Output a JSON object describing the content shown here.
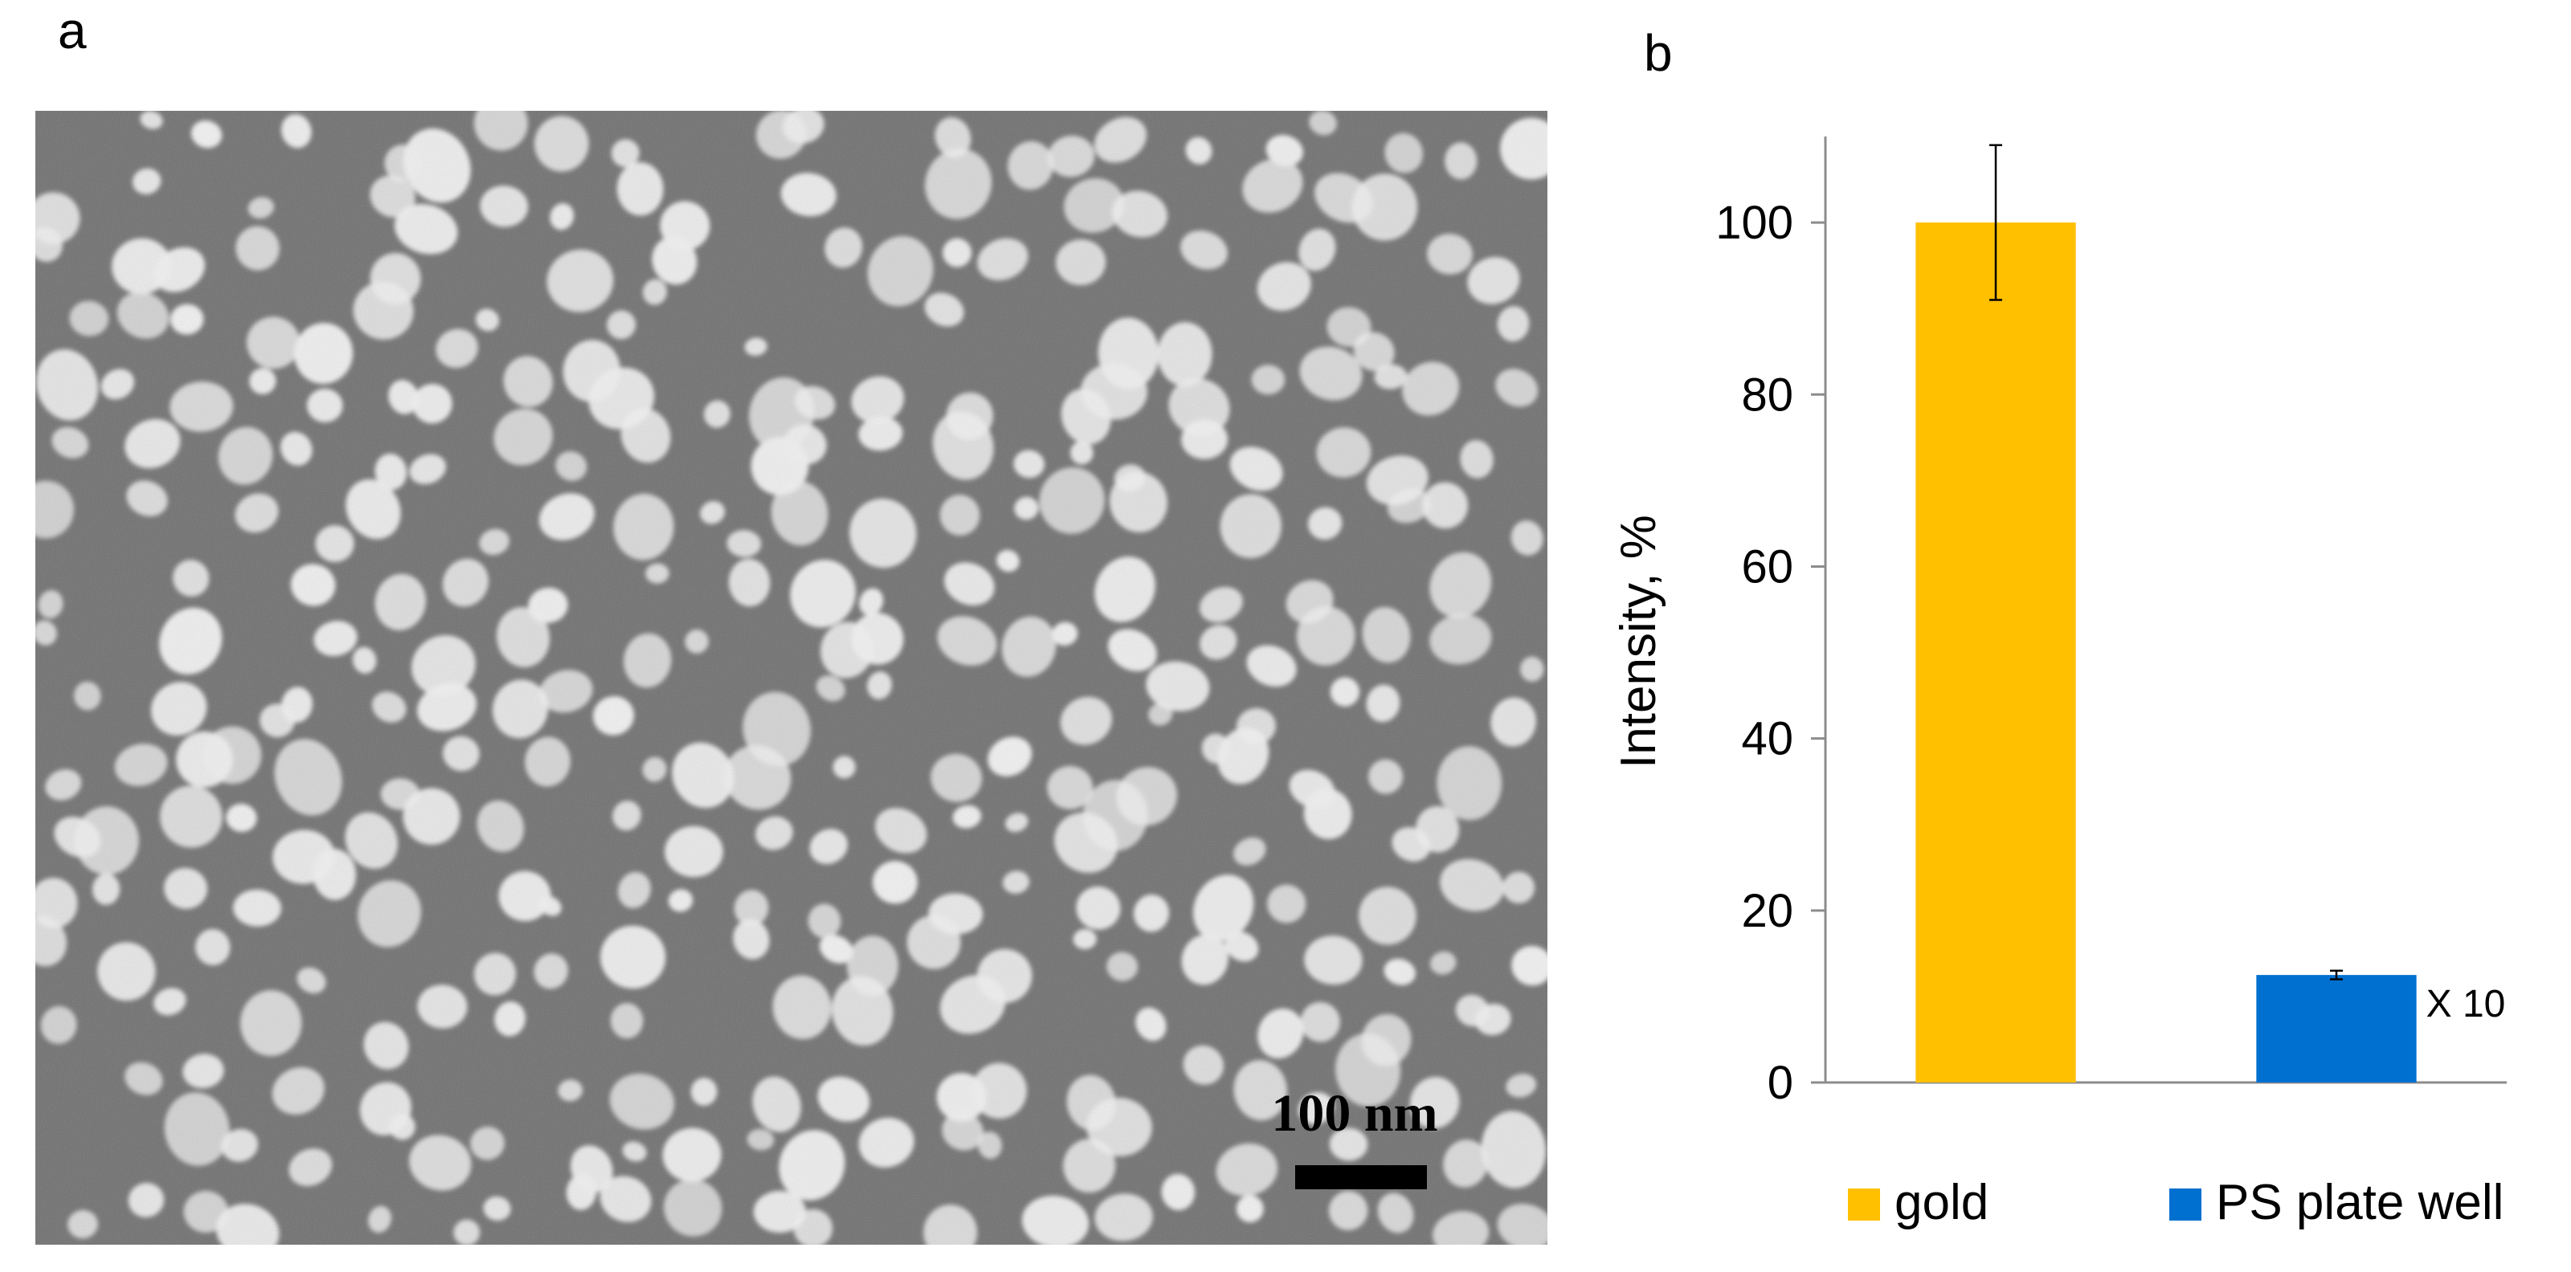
{
  "panels": {
    "a": "a",
    "b": "b"
  },
  "sem_image": {
    "description_label": "100 nm",
    "background_color": "#6f6f6f",
    "particle_color": "#f2f2f2"
  },
  "chart_data": {
    "type": "bar",
    "ylabel": "Intensity, %",
    "ylim": [
      0,
      110
    ],
    "yticks": [
      0,
      20,
      40,
      60,
      80,
      100
    ],
    "grid": false,
    "legend_position": "bottom",
    "series": [
      {
        "name": "gold",
        "value": 100,
        "error": 9,
        "color": "#ffc000"
      },
      {
        "name": "PS plate well",
        "value": 12.5,
        "error": 0.5,
        "color": "#0070d0",
        "annotation": "X 10"
      }
    ]
  }
}
